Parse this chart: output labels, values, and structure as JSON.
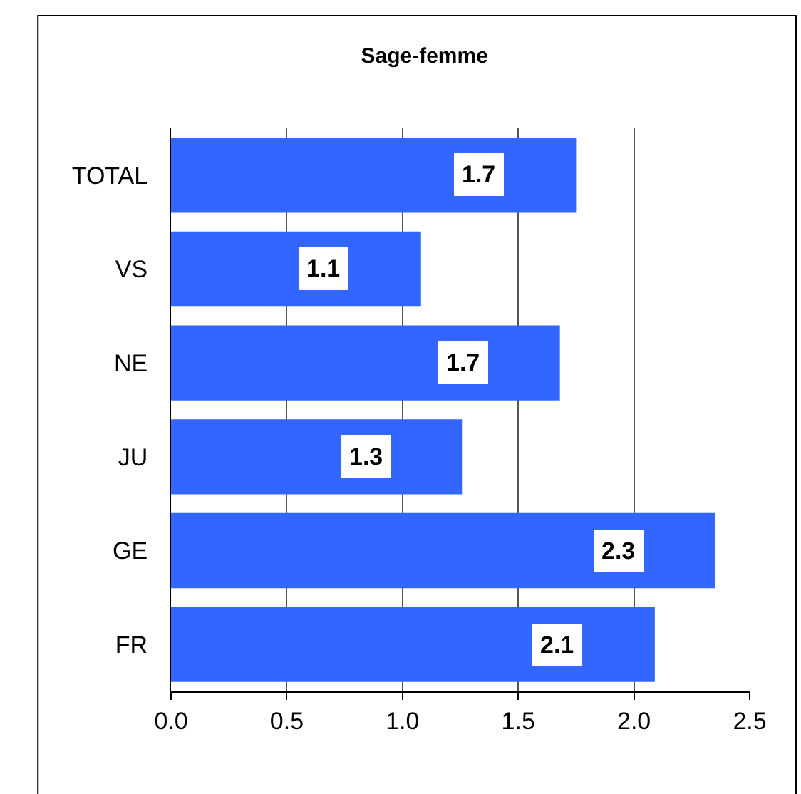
{
  "chart_data": {
    "type": "bar",
    "orientation": "horizontal",
    "title": "Sage-femme",
    "categories": [
      "TOTAL",
      "VS",
      "NE",
      "JU",
      "GE",
      "FR"
    ],
    "values": [
      1.75,
      1.08,
      1.68,
      1.26,
      2.35,
      2.09
    ],
    "value_labels": [
      "1.7",
      "1.1",
      "1.7",
      "1.3",
      "2.3",
      "2.1"
    ],
    "color": "#3366ff",
    "xlim": [
      0,
      2.5
    ],
    "xticks": [
      {
        "value": 0,
        "label": "0.0"
      },
      {
        "value": 0.5,
        "label": "0.5"
      },
      {
        "value": 1,
        "label": "1.0"
      },
      {
        "value": 1.5,
        "label": "1.5"
      },
      {
        "value": 2,
        "label": "2.0"
      },
      {
        "value": 2.5,
        "label": "2.5"
      }
    ],
    "grid": "x",
    "legend": false
  }
}
